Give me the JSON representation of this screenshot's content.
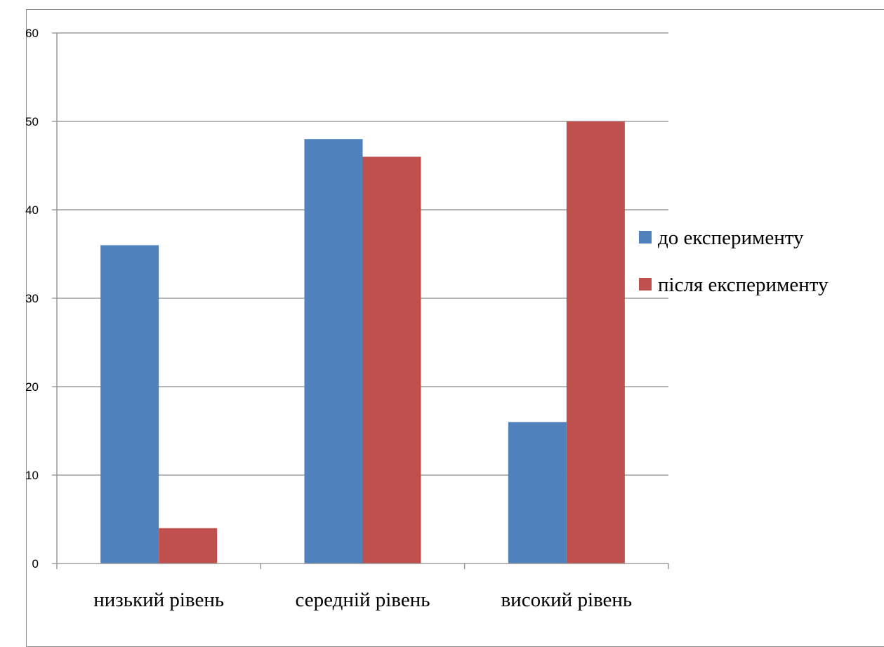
{
  "chart_data": {
    "type": "bar",
    "categories": [
      "низький рівень",
      "середній рівень",
      "високий рівень"
    ],
    "series": [
      {
        "name": "до експерименту",
        "values": [
          36,
          48,
          16
        ],
        "color": "#4F81BD"
      },
      {
        "name": "після експерименту",
        "values": [
          4,
          46,
          50
        ],
        "color": "#C0504D"
      }
    ],
    "ylim": [
      0,
      60
    ],
    "yticks": [
      0,
      10,
      20,
      30,
      40,
      50,
      60
    ],
    "grid": true,
    "legend_position": "right"
  }
}
